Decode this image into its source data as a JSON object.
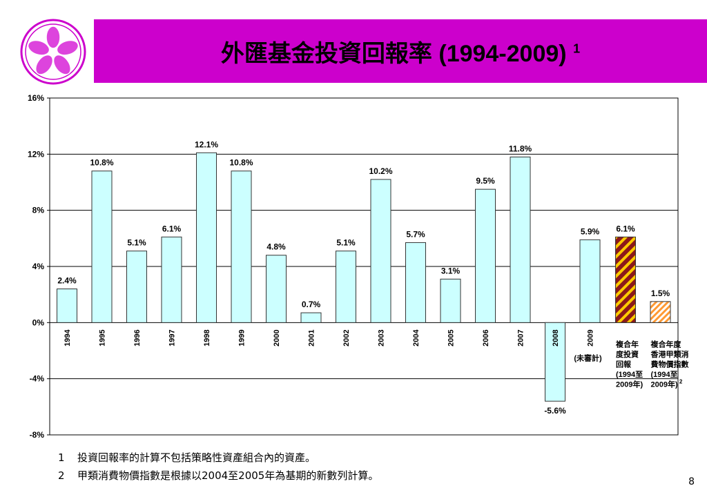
{
  "title": {
    "text": "外匯基金投資回報率 (1994-2009)",
    "superscript": "1"
  },
  "colors": {
    "title_bar": "#cc00cc",
    "bar_fill": "#ccffff",
    "bar_stroke": "#333333",
    "special_dark": "#8b1a1a",
    "special_gold": "#ffcc00",
    "special_orange": "#ff9933"
  },
  "chart_data": {
    "type": "bar",
    "categories": [
      "1994",
      "1995",
      "1996",
      "1997",
      "1998",
      "1999",
      "2000",
      "2001",
      "2002",
      "2003",
      "2004",
      "2005",
      "2006",
      "2007",
      "2008",
      "2009"
    ],
    "values": [
      2.4,
      10.8,
      5.1,
      6.1,
      12.1,
      10.8,
      4.8,
      0.7,
      5.1,
      10.2,
      5.7,
      3.1,
      9.5,
      11.8,
      -5.6,
      5.9
    ],
    "data_labels": [
      "2.4%",
      "10.8%",
      "5.1%",
      "6.1%",
      "12.1%",
      "10.8%",
      "4.8%",
      "0.7%",
      "5.1%",
      "10.2%",
      "5.7%",
      "3.1%",
      "9.5%",
      "11.8%",
      "-5.6%",
      "5.9%"
    ],
    "category_notes": {
      "2009": "(未審計)"
    },
    "extra_bars": [
      {
        "value": 6.1,
        "data_label": "6.1%",
        "label_lines": [
          "複合年",
          "度投資",
          "回報",
          "(1994至",
          "2009年)"
        ],
        "pattern": "maroon-gold-stripes"
      },
      {
        "value": 1.5,
        "data_label": "1.5%",
        "label_lines": [
          "複合年度",
          "香港甲類消",
          "費物價指數",
          "(1994至",
          "2009年)"
        ],
        "label_sup": "2",
        "pattern": "orange-stripes"
      }
    ],
    "ylim": [
      -8,
      16
    ],
    "yticks": [
      -8,
      -4,
      0,
      4,
      8,
      12,
      16
    ],
    "ytick_labels": [
      "-8%",
      "-4%",
      "0%",
      "4%",
      "8%",
      "12%",
      "16%"
    ],
    "grid": true
  },
  "footnotes": [
    {
      "num": "1",
      "text": "投資回報率的計算不包括策略性資產組合內的資產。"
    },
    {
      "num": "2",
      "text": "甲類消費物價指數是根據以2004至2005年為基期的新數列計算。"
    }
  ],
  "page_number": "8"
}
